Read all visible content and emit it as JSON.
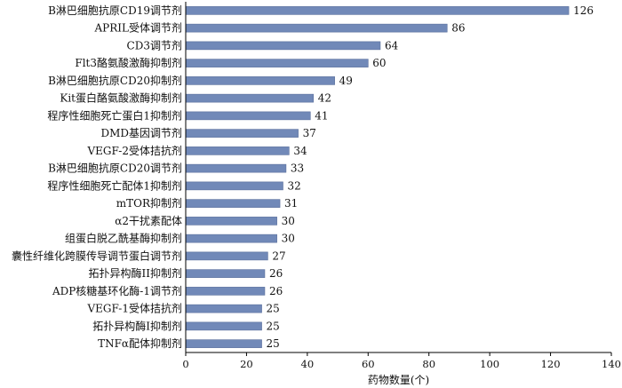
{
  "chart_data": {
    "type": "bar",
    "orientation": "horizontal",
    "categories": [
      "B淋巴细胞抗原CD19调节剂",
      "APRIL受体调节剂",
      "CD3调节剂",
      "Flt3酪氨酸激酶抑制剂",
      "B淋巴细胞抗原CD20抑制剂",
      "Kit蛋白酪氨酸激酶抑制剂",
      "程序性细胞死亡蛋白1抑制剂",
      "DMD基因调节剂",
      "VEGF-2受体拮抗剂",
      "B淋巴细胞抗原CD20调节剂",
      "程序性细胞死亡配体1抑制剂",
      "mTOR抑制剂",
      "α2干扰素配体",
      "组蛋白脱乙酰基酶抑制剂",
      "囊性纤维化跨膜传导调节蛋白调节剂",
      "拓扑异构酶II抑制剂",
      "ADP核糖基环化酶-1调节剂",
      "VEGF-1受体拮抗剂",
      "拓扑异构酶I抑制剂",
      "TNFα配体抑制剂"
    ],
    "values": [
      126,
      86,
      64,
      60,
      49,
      42,
      41,
      37,
      34,
      33,
      32,
      31,
      30,
      30,
      27,
      26,
      26,
      25,
      25,
      25
    ],
    "xlabel": "药物数量(个)",
    "ylabel": "",
    "title": "",
    "xlim": [
      0,
      140
    ],
    "xticks": [
      0,
      20,
      40,
      60,
      80,
      100,
      120,
      140
    ],
    "data_labels": true,
    "grid": false,
    "bar_color": "#7189b8",
    "bar_stroke": "#5a6f9c"
  }
}
